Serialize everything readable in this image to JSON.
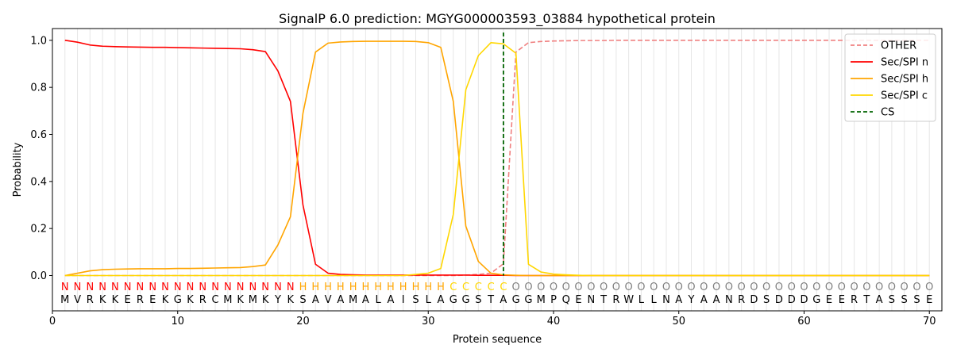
{
  "chart_data": {
    "type": "line",
    "title": "SignalP 6.0 prediction: MGYG000003593_03884 hypothetical protein",
    "xlabel": "Protein sequence",
    "ylabel": "Probability",
    "xlim": [
      0,
      71
    ],
    "ylim": [
      -0.15,
      1.05
    ],
    "xticks": [
      0,
      10,
      20,
      30,
      40,
      50,
      60,
      70
    ],
    "yticks": [
      0.0,
      0.2,
      0.4,
      0.6,
      0.8,
      1.0
    ],
    "grid": "vertical lines at every residue",
    "legend_position": "top-right",
    "sequence": [
      "M",
      "V",
      "R",
      "K",
      "K",
      "E",
      "R",
      "E",
      "K",
      "G",
      "K",
      "R",
      "C",
      "M",
      "K",
      "M",
      "K",
      "Y",
      "K",
      "S",
      "A",
      "V",
      "A",
      "M",
      "A",
      "L",
      "A",
      "I",
      "S",
      "L",
      "A",
      "G",
      "G",
      "S",
      "T",
      "A",
      "G",
      "G",
      "M",
      "P",
      "Q",
      "E",
      "N",
      "T",
      "R",
      "W",
      "L",
      "L",
      "N",
      "A",
      "Y",
      "A",
      "A",
      "N",
      "R",
      "D",
      "S",
      "D",
      "D",
      "D",
      "G",
      "E",
      "E",
      "R",
      "T",
      "A",
      "S",
      "S",
      "S",
      "E"
    ],
    "labels": [
      "N",
      "N",
      "N",
      "N",
      "N",
      "N",
      "N",
      "N",
      "N",
      "N",
      "N",
      "N",
      "N",
      "N",
      "N",
      "N",
      "N",
      "N",
      "N",
      "H",
      "H",
      "H",
      "H",
      "H",
      "H",
      "H",
      "H",
      "H",
      "H",
      "H",
      "H",
      "C",
      "C",
      "C",
      "C",
      "C",
      "O",
      "O",
      "O",
      "O",
      "O",
      "O",
      "O",
      "O",
      "O",
      "O",
      "O",
      "O",
      "O",
      "O",
      "O",
      "O",
      "O",
      "O",
      "O",
      "O",
      "O",
      "O",
      "O",
      "O",
      "O",
      "O",
      "O",
      "O",
      "O",
      "O",
      "O",
      "O",
      "O",
      "O"
    ],
    "label_colors": {
      "N": "#ff0000",
      "H": "#ffa500",
      "C": "#ffd700",
      "O": "#808080"
    },
    "series": [
      {
        "name": "OTHER",
        "color": "#f08080",
        "style": "dashed",
        "values": [
          0.0,
          0.0,
          0.0,
          0.0,
          0.0,
          0.0,
          0.0,
          0.0,
          0.0,
          0.0,
          0.0,
          0.0,
          0.0,
          0.0,
          0.0,
          0.0,
          0.0,
          0.0,
          0.0,
          0.0,
          0.0,
          0.0,
          0.0,
          0.0,
          0.0,
          0.0,
          0.0,
          0.0,
          0.0,
          0.0,
          0.0,
          0.0,
          0.002,
          0.005,
          0.01,
          0.05,
          0.95,
          0.99,
          0.995,
          0.997,
          0.998,
          0.999,
          0.999,
          0.999,
          1.0,
          1.0,
          1.0,
          1.0,
          1.0,
          1.0,
          1.0,
          1.0,
          1.0,
          1.0,
          1.0,
          1.0,
          1.0,
          1.0,
          1.0,
          1.0,
          1.0,
          1.0,
          1.0,
          1.0,
          1.0,
          1.0,
          1.0,
          1.0,
          1.0,
          1.0
        ]
      },
      {
        "name": "Sec/SPI n",
        "color": "#ff0000",
        "style": "solid",
        "values": [
          1.0,
          0.992,
          0.98,
          0.975,
          0.973,
          0.972,
          0.971,
          0.97,
          0.97,
          0.969,
          0.968,
          0.967,
          0.966,
          0.965,
          0.964,
          0.96,
          0.952,
          0.87,
          0.74,
          0.3,
          0.048,
          0.01,
          0.005,
          0.003,
          0.002,
          0.002,
          0.002,
          0.002,
          0.002,
          0.002,
          0.002,
          0.002,
          0.002,
          0.001,
          0.001,
          0.001,
          0.0,
          0.0,
          0.0,
          0.0,
          0.0,
          0.0,
          0.0,
          0.0,
          0.0,
          0.0,
          0.0,
          0.0,
          0.0,
          0.0,
          0.0,
          0.0,
          0.0,
          0.0,
          0.0,
          0.0,
          0.0,
          0.0,
          0.0,
          0.0,
          0.0,
          0.0,
          0.0,
          0.0,
          0.0,
          0.0,
          0.0,
          0.0,
          0.0,
          0.0
        ]
      },
      {
        "name": "Sec/SPI h",
        "color": "#ffa500",
        "style": "solid",
        "values": [
          0.0,
          0.01,
          0.02,
          0.025,
          0.027,
          0.028,
          0.029,
          0.029,
          0.029,
          0.03,
          0.03,
          0.031,
          0.032,
          0.033,
          0.034,
          0.038,
          0.045,
          0.13,
          0.25,
          0.69,
          0.95,
          0.988,
          0.993,
          0.995,
          0.996,
          0.996,
          0.996,
          0.996,
          0.995,
          0.99,
          0.97,
          0.74,
          0.21,
          0.06,
          0.01,
          0.003,
          0.001,
          0.0,
          0.0,
          0.0,
          0.0,
          0.0,
          0.0,
          0.0,
          0.0,
          0.0,
          0.0,
          0.0,
          0.0,
          0.0,
          0.0,
          0.0,
          0.0,
          0.0,
          0.0,
          0.0,
          0.0,
          0.0,
          0.0,
          0.0,
          0.0,
          0.0,
          0.0,
          0.0,
          0.0,
          0.0,
          0.0,
          0.0,
          0.0,
          0.0
        ]
      },
      {
        "name": "Sec/SPI c",
        "color": "#ffd700",
        "style": "solid",
        "values": [
          0.0,
          0.0,
          0.0,
          0.0,
          0.0,
          0.0,
          0.0,
          0.0,
          0.0,
          0.0,
          0.0,
          0.0,
          0.0,
          0.0,
          0.0,
          0.0,
          0.0,
          0.0,
          0.0,
          0.0,
          0.0,
          0.0,
          0.0,
          0.0,
          0.0,
          0.0,
          0.0,
          0.0,
          0.005,
          0.01,
          0.03,
          0.26,
          0.79,
          0.935,
          0.99,
          0.985,
          0.945,
          0.048,
          0.015,
          0.006,
          0.003,
          0.001,
          0.0,
          0.0,
          0.0,
          0.0,
          0.0,
          0.0,
          0.0,
          0.0,
          0.0,
          0.0,
          0.0,
          0.0,
          0.0,
          0.0,
          0.0,
          0.0,
          0.0,
          0.0,
          0.0,
          0.0,
          0.0,
          0.0,
          0.0,
          0.0,
          0.0,
          0.0,
          0.0,
          0.0
        ]
      }
    ],
    "cleavage_site": {
      "name": "CS",
      "x": 36,
      "color": "#006400",
      "style": "dashed"
    }
  }
}
